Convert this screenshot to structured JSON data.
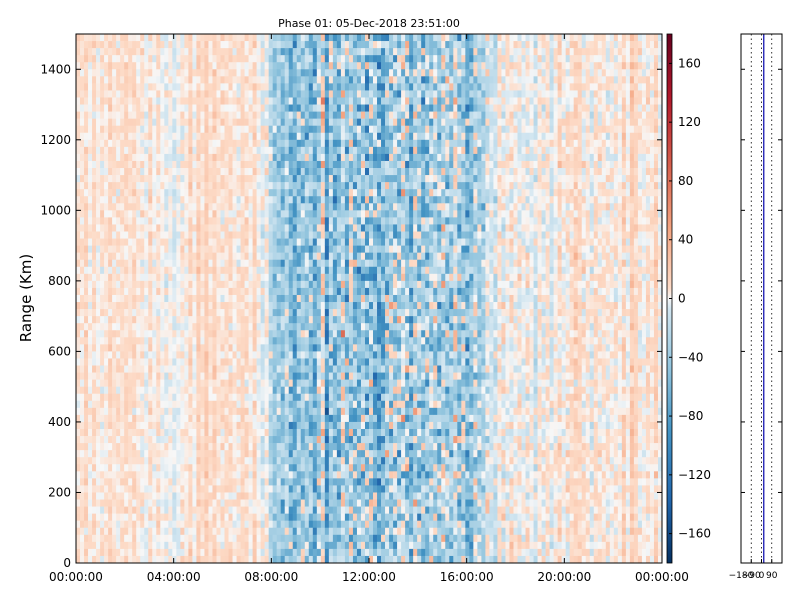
{
  "chart_data": [
    {
      "type": "heatmap",
      "title": "Phase 01: 05-Dec-2018 23:51:00",
      "xlabel": "",
      "ylabel": "Range (Km)",
      "x_ticks": [
        "00:00:00",
        "04:00:00",
        "08:00:00",
        "12:00:00",
        "16:00:00",
        "20:00:00",
        "00:00:00"
      ],
      "x_range_hours": [
        0,
        24
      ],
      "y_ticks": [
        0,
        200,
        400,
        600,
        800,
        1000,
        1200,
        1400
      ],
      "ylim": [
        0,
        1500
      ],
      "colorbar": {
        "range": [
          -180,
          180
        ],
        "ticks": [
          -160,
          -120,
          -80,
          -40,
          0,
          40,
          80,
          120,
          160
        ],
        "colormap": "RdBu_r"
      },
      "value_profile_by_hour": [
        {
          "hour": 0,
          "mean": 5,
          "spread": 20
        },
        {
          "hour": 2,
          "mean": 8,
          "spread": 20
        },
        {
          "hour": 4,
          "mean": 0,
          "spread": 22
        },
        {
          "hour": 5.5,
          "mean": 12,
          "spread": 20
        },
        {
          "hour": 7.5,
          "mean": 8,
          "spread": 25
        },
        {
          "hour": 8.5,
          "mean": -35,
          "spread": 70
        },
        {
          "hour": 12,
          "mean": -40,
          "spread": 110
        },
        {
          "hour": 16,
          "mean": -35,
          "spread": 90
        },
        {
          "hour": 17,
          "mean": -5,
          "spread": 40
        },
        {
          "hour": 20,
          "mean": 8,
          "spread": 30
        },
        {
          "hour": 24,
          "mean": 8,
          "spread": 25
        }
      ]
    },
    {
      "type": "line",
      "x_ticks": [
        "−180",
        "−90",
        "0",
        "90"
      ],
      "xlim": [
        -180,
        180
      ],
      "ylim": [
        0,
        1500
      ],
      "series": [
        {
          "color": "#0000aa",
          "x": [
            20,
            20
          ],
          "y": [
            0,
            1500
          ]
        }
      ],
      "reference_lines_x": [
        -90,
        0,
        90
      ]
    }
  ]
}
